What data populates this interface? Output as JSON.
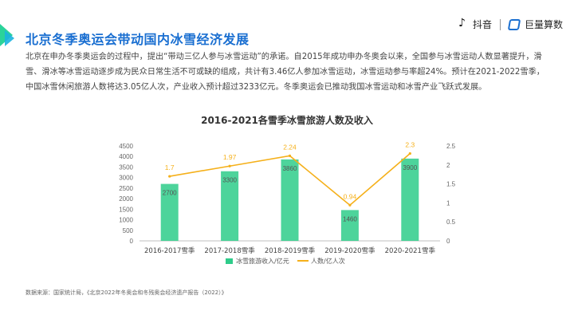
{
  "header": {
    "title": "北京冬季奥运会带动国内冰雪经济发展",
    "brand_douyin": "抖音",
    "brand_juliang": "巨量算数"
  },
  "intro": "北京在申办冬季奥运会的过程中，提出“带动三亿人参与冰雪运动”的承诺。自2015年成功申办冬奥会以来，全国参与冰雪运动人数显著提升，滑雪、滑冰等冰雪运动逐步成为民众日常生活不可或缺的组成，共计有3.46亿人参加冰雪运动，冰雪运动参与率超24%。预计在2021-2022雪季，中国冰雪休闲旅游人数将达3.05亿人次，产业收入预计超过3233亿元。冬季奥运会已推动我国冰雪运动和冰雪产业飞跃式发展。",
  "source": "数据来源：国家统计局，《北京2022年冬奥会和冬残奥会经济遗产报告（2022）》",
  "colors": {
    "accent": "#1a6fd1",
    "bar": "#2ecc8a",
    "line": "#f5b01a"
  },
  "chart_data": {
    "type": "bar",
    "title": "2016-2021各雪季冰雪旅游人数及收入",
    "categories": [
      "2016-2017雪季",
      "2017-2018雪季",
      "2018-2019雪季",
      "2019-2020雪季",
      "2020-2021雪季"
    ],
    "series": [
      {
        "name": "冰雪旅游收入/亿元",
        "type": "bar",
        "axis": "left",
        "values": [
          2700,
          3300,
          3860,
          1460,
          3900
        ]
      },
      {
        "name": "人数/亿人次",
        "type": "line",
        "axis": "right",
        "values": [
          1.7,
          1.97,
          2.24,
          0.94,
          2.3
        ]
      }
    ],
    "bar_labels": [
      "2700",
      "3300",
      "3860",
      "1460",
      "3900"
    ],
    "line_labels": [
      "1.7",
      "1.97",
      "2.24",
      "0.94",
      "2.3"
    ],
    "y_left": {
      "min": 0,
      "max": 4500,
      "ticks": [
        "0",
        "500",
        "1000",
        "1500",
        "2000",
        "2500",
        "3000",
        "3500",
        "4000",
        "4500"
      ]
    },
    "y_right": {
      "min": 0,
      "max": 2.5,
      "ticks": [
        "0",
        "0.5",
        "1",
        "1.5",
        "2",
        "2.5"
      ]
    },
    "grid": false,
    "legend": "bottom"
  }
}
